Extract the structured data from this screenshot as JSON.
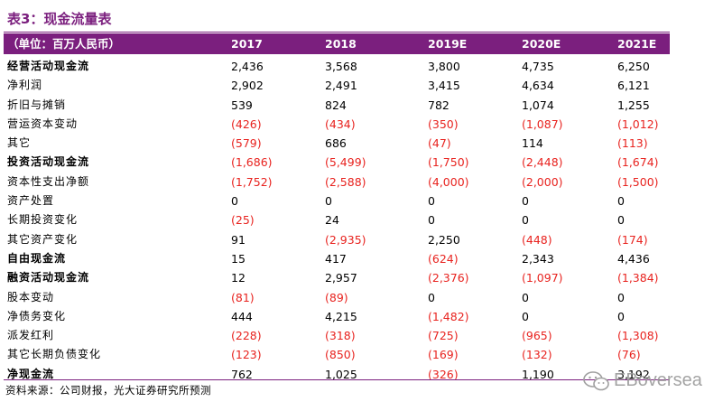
{
  "title": "表3：现金流量表",
  "header": {
    "unit": "（单位：百万人民币）",
    "years": [
      "2017",
      "2018",
      "2019E",
      "2020E",
      "2021E"
    ]
  },
  "rows": [
    {
      "label": "经营活动现金流",
      "bold": true,
      "values": [
        "2,436",
        "3,568",
        "3,800",
        "4,735",
        "6,250"
      ]
    },
    {
      "label": "净利润",
      "bold": false,
      "values": [
        "2,902",
        "2,491",
        "3,415",
        "4,634",
        "6,121"
      ]
    },
    {
      "label": "折旧与摊销",
      "bold": false,
      "values": [
        "539",
        "824",
        "782",
        "1,074",
        "1,255"
      ]
    },
    {
      "label": "营运资本变动",
      "bold": false,
      "values": [
        "(426)",
        "(434)",
        "(350)",
        "(1,087)",
        "(1,012)"
      ]
    },
    {
      "label": "其它",
      "bold": false,
      "values": [
        "(579)",
        "686",
        "(47)",
        "114",
        "(113)"
      ]
    },
    {
      "label": "投资活动现金流",
      "bold": true,
      "values": [
        "(1,686)",
        "(5,499)",
        "(1,750)",
        "(2,448)",
        "(1,674)"
      ]
    },
    {
      "label": "资本性支出净额",
      "bold": false,
      "values": [
        "(1,752)",
        "(2,588)",
        "(4,000)",
        "(2,000)",
        "(1,500)"
      ]
    },
    {
      "label": "资产处置",
      "bold": false,
      "values": [
        "0",
        "0",
        "0",
        "0",
        "0"
      ]
    },
    {
      "label": "长期投资变化",
      "bold": false,
      "values": [
        "(25)",
        "24",
        "0",
        "0",
        "0"
      ]
    },
    {
      "label": "其它资产变化",
      "bold": false,
      "values": [
        "91",
        "(2,935)",
        "2,250",
        "(448)",
        "(174)"
      ]
    },
    {
      "label": "自由现金流",
      "bold": true,
      "values": [
        "15",
        "417",
        "(624)",
        "2,343",
        "4,436"
      ]
    },
    {
      "label": "融资活动现金流",
      "bold": true,
      "values": [
        "12",
        "2,957",
        "(2,376)",
        "(1,097)",
        "(1,384)"
      ]
    },
    {
      "label": "股本变动",
      "bold": false,
      "values": [
        "(81)",
        "(89)",
        "0",
        "0",
        "0"
      ]
    },
    {
      "label": "净债务变化",
      "bold": false,
      "values": [
        "444",
        "4,215",
        "(1,482)",
        "0",
        "0"
      ]
    },
    {
      "label": "派发红利",
      "bold": false,
      "values": [
        "(228)",
        "(318)",
        "(725)",
        "(965)",
        "(1,308)"
      ]
    },
    {
      "label": "其它长期负债变化",
      "bold": false,
      "values": [
        "(123)",
        "(850)",
        "(169)",
        "(132)",
        "(76)"
      ]
    },
    {
      "label": "净现金流",
      "bold": true,
      "values": [
        "762",
        "1,025",
        "(326)",
        "1,190",
        "3,192"
      ]
    }
  ],
  "source": "资料来源：公司财报，光大证券研究所预测",
  "watermark": "EBoversea",
  "colors": {
    "header_bg": "#7B1F7E",
    "negative": "#E8231F",
    "title": "#7B1F7E"
  }
}
